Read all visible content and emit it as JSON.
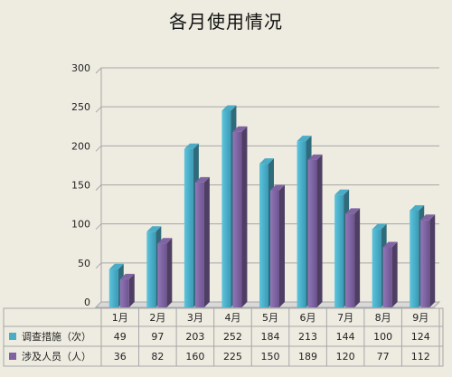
{
  "chart_data": {
    "type": "bar",
    "title": "各月使用情况",
    "xlabel": "",
    "ylabel": "",
    "categories": [
      "1月",
      "2月",
      "3月",
      "4月",
      "5月",
      "6月",
      "7月",
      "8月",
      "9月"
    ],
    "series": [
      {
        "name": "调查措施（次）",
        "color": "#4bacc6",
        "values": [
          49,
          97,
          203,
          252,
          184,
          213,
          144,
          100,
          124
        ]
      },
      {
        "name": "涉及人员（人）",
        "color": "#8064a2",
        "values": [
          36,
          82,
          160,
          225,
          150,
          189,
          120,
          77,
          112
        ]
      }
    ],
    "ylim": [
      0,
      300
    ],
    "yticks": [
      0,
      50,
      100,
      150,
      200,
      250,
      300
    ],
    "grid": true,
    "legend": "data-table"
  }
}
